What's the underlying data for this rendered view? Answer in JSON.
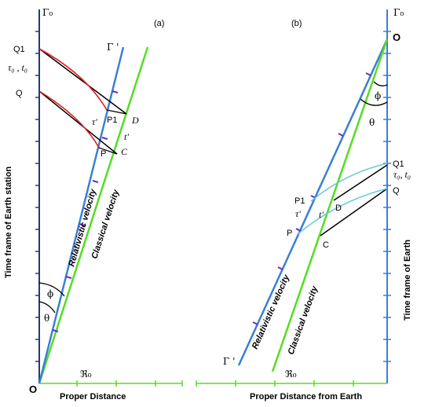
{
  "panel_a": {
    "label": "(a)",
    "axis_top": "Γ₀",
    "gamma_prime": "Γ '",
    "origin": "O",
    "x_axis_title": "Proper Distance",
    "x_axis_symbol": "ℜ₀",
    "y_axis_title": "Time frame of Earth station",
    "q1": "Q1",
    "q": "Q",
    "tau_t": "τ₀ , t₀",
    "p1": "P1",
    "p": "P",
    "d": "D",
    "c": "C",
    "tau_prime": "τ'",
    "t_prime": "t'",
    "phi": "ϕ",
    "theta": "θ",
    "relativistic_label": "Relativistic  velocity",
    "classical_label": "Classical velocity"
  },
  "panel_b": {
    "label": "(b)",
    "axis_top": "Γ₀",
    "gamma_prime": "Γ '",
    "origin": "O",
    "x_axis_title": "Proper Distance from Earth",
    "x_axis_symbol": "ℜ₀",
    "y_axis_title": "Time frame of Earth",
    "q1": "Q1",
    "q": "Q",
    "tau_t": "τ₀, t₀",
    "p1": "P1",
    "p": "P",
    "d": "D",
    "c": "C",
    "tau_prime": "τ'",
    "t_prime": "t'",
    "phi": "ϕ",
    "theta": "θ",
    "relativistic_label": "Relativistic velocity",
    "classical_label": "Classical  velocity"
  },
  "colors": {
    "earth_axis": "#3a7fd5",
    "relativistic": "#3a7fd5",
    "classical": "#55dd22",
    "red_curve": "#e02020",
    "cyan_curve": "#66ccdd",
    "tick_purple": "#6a2cc8"
  }
}
